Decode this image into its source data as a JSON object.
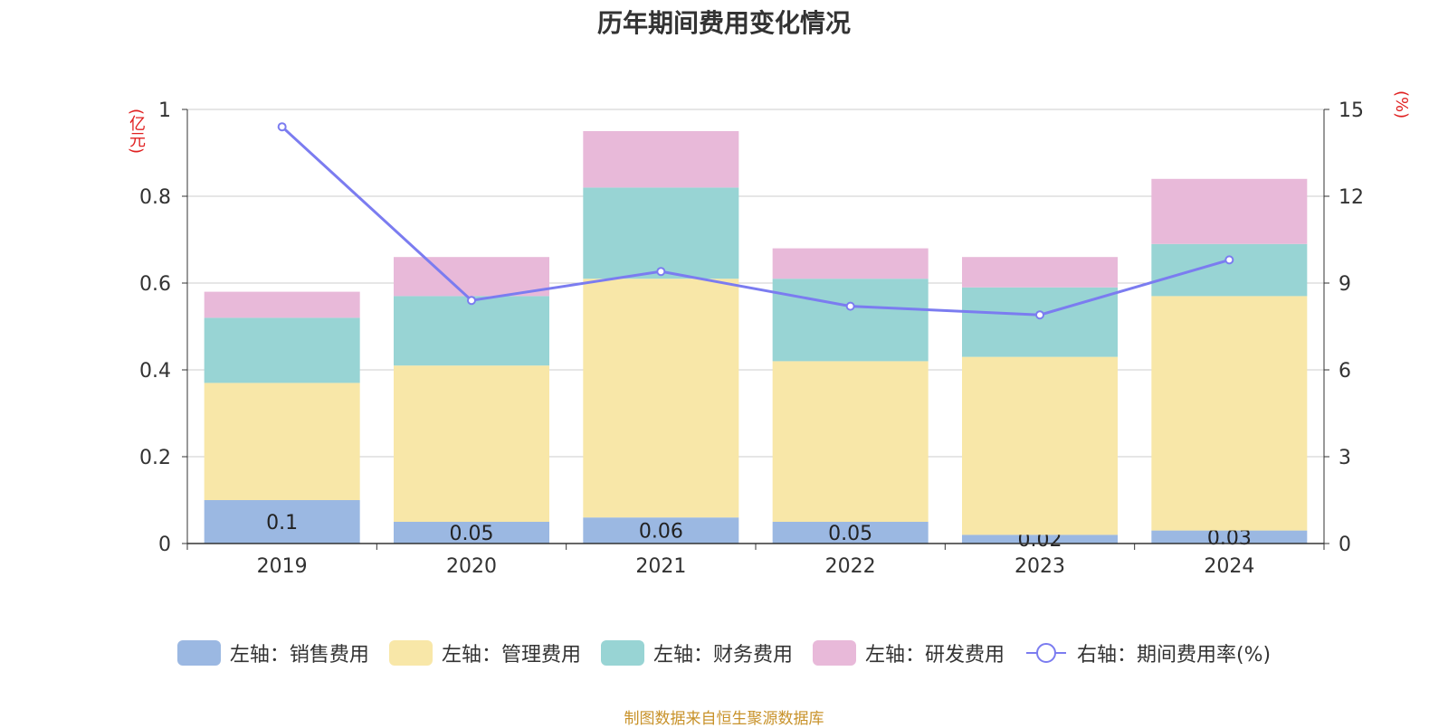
{
  "chart_data": {
    "type": "bar",
    "title": "历年期间费用变化情况",
    "left_axis_unit": "(亿元)",
    "right_axis_unit": "(%)",
    "categories": [
      "2019",
      "2020",
      "2021",
      "2022",
      "2023",
      "2024"
    ],
    "ylim": [
      0,
      1
    ],
    "yticks": [
      "0",
      "0.2",
      "0.4",
      "0.6",
      "0.8",
      "1"
    ],
    "y2lim": [
      0,
      15
    ],
    "y2ticks": [
      "0",
      "3",
      "6",
      "9",
      "12",
      "15"
    ],
    "series": [
      {
        "name": "左轴：销售费用",
        "axis": "left",
        "color": "#9bb8e2",
        "values": [
          0.1,
          0.05,
          0.06,
          0.05,
          0.02,
          0.03
        ],
        "labels": [
          "0.1",
          "0.05",
          "0.06",
          "0.05",
          "0.02",
          "0.03"
        ]
      },
      {
        "name": "左轴：管理费用",
        "axis": "left",
        "color": "#f8e7a8",
        "values": [
          0.27,
          0.36,
          0.55,
          0.37,
          0.41,
          0.54
        ]
      },
      {
        "name": "左轴：财务费用",
        "axis": "left",
        "color": "#98d4d4",
        "values": [
          0.15,
          0.16,
          0.21,
          0.19,
          0.16,
          0.12
        ]
      },
      {
        "name": "左轴：研发费用",
        "axis": "left",
        "color": "#e8b9d9",
        "values": [
          0.06,
          0.09,
          0.13,
          0.07,
          0.07,
          0.15
        ]
      },
      {
        "name": "右轴：期间费用率(%)",
        "axis": "right",
        "type": "line",
        "color": "#7b7cf0",
        "values": [
          14.4,
          8.4,
          9.4,
          8.2,
          7.9,
          9.8
        ]
      }
    ]
  },
  "source": "制图数据来自恒生聚源数据库"
}
